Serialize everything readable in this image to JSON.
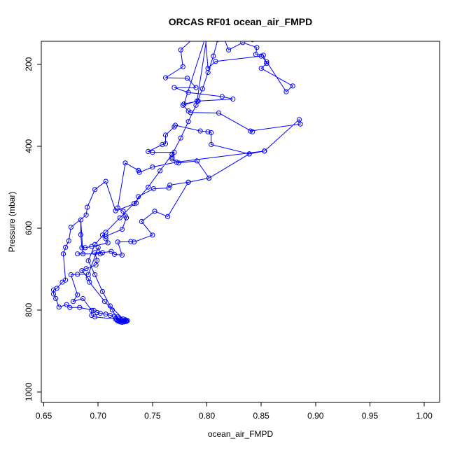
{
  "title": "ORCAS RF01 ocean_air_FMPD",
  "chart_data": {
    "type": "line",
    "title": "ORCAS RF01 ocean_air_FMPD",
    "xlabel": "ocean_air_FMPD",
    "ylabel": "Pressure (mbar)",
    "grid": false,
    "legend": "none",
    "marker": "open-circle",
    "line_style": "solid",
    "series_color": "#0000FF",
    "axis_color": "#000000",
    "background_color": "#FFFFFF",
    "y_axis_reversed": true,
    "x_tick_values": [
      0.65,
      0.7,
      0.75,
      0.8,
      0.85,
      0.9,
      0.95,
      1.0
    ],
    "x_tick_labels": [
      "0.65",
      "0.70",
      "0.75",
      "0.80",
      "0.85",
      "0.90",
      "0.95",
      "1.00"
    ],
    "y_tick_values": [
      200,
      400,
      600,
      800,
      1000
    ],
    "y_tick_labels": [
      "200",
      "400",
      "600",
      "800",
      "1000"
    ],
    "x_range_box": [
      0.6477,
      1.0141
    ],
    "y_range_box": [
      1025,
      144
    ],
    "track": [
      [
        0.844,
        112
      ],
      [
        0.842,
        140
      ],
      [
        0.816,
        138
      ],
      [
        0.82,
        165
      ],
      [
        0.833,
        147
      ],
      [
        0.846,
        159
      ],
      [
        0.845,
        176
      ],
      [
        0.852,
        178
      ],
      [
        0.855,
        198
      ],
      [
        0.85,
        210
      ],
      [
        0.879,
        253
      ],
      [
        0.873,
        267
      ],
      [
        0.855,
        194
      ],
      [
        0.85,
        180
      ],
      [
        0.808,
        193
      ],
      [
        0.801,
        210
      ],
      [
        0.798,
        112
      ],
      [
        0.776,
        165
      ],
      [
        0.778,
        206
      ],
      [
        0.762,
        233
      ],
      [
        0.782,
        234
      ],
      [
        0.79,
        257
      ],
      [
        0.77,
        257
      ],
      [
        0.783,
        269
      ],
      [
        0.814,
        279
      ],
      [
        0.824,
        285
      ],
      [
        0.792,
        290
      ],
      [
        0.779,
        297
      ],
      [
        0.801,
        115
      ],
      [
        0.791,
        290
      ],
      [
        0.778,
        300
      ],
      [
        0.783,
        314
      ],
      [
        0.785,
        318
      ],
      [
        0.811,
        319
      ],
      [
        0.842,
        365
      ],
      [
        0.84,
        363
      ],
      [
        0.886,
        346
      ],
      [
        0.885,
        335
      ],
      [
        0.853,
        412
      ],
      [
        0.839,
        419
      ],
      [
        0.804,
        396
      ],
      [
        0.804,
        367
      ],
      [
        0.801,
        365
      ],
      [
        0.794,
        363
      ],
      [
        0.771,
        349
      ],
      [
        0.77,
        353
      ],
      [
        0.762,
        373
      ],
      [
        0.762,
        394
      ],
      [
        0.759,
        396
      ],
      [
        0.746,
        413
      ],
      [
        0.75,
        415
      ],
      [
        0.77,
        415
      ],
      [
        0.768,
        427
      ],
      [
        0.768,
        431
      ],
      [
        0.774,
        441
      ],
      [
        0.791,
        436
      ],
      [
        0.802,
        478
      ],
      [
        0.783,
        488
      ],
      [
        0.766,
        495
      ],
      [
        0.765,
        502
      ],
      [
        0.751,
        504
      ],
      [
        0.737,
        523
      ],
      [
        0.735,
        539
      ],
      [
        0.716,
        558
      ],
      [
        0.707,
        486
      ],
      [
        0.697,
        506
      ],
      [
        0.69,
        549
      ],
      [
        0.689,
        568
      ],
      [
        0.675,
        598
      ],
      [
        0.673,
        631
      ],
      [
        0.67,
        647
      ],
      [
        0.668,
        663
      ],
      [
        0.67,
        727
      ],
      [
        0.667,
        732
      ],
      [
        0.662,
        747
      ],
      [
        0.659,
        751
      ],
      [
        0.659,
        761
      ],
      [
        0.661,
        772
      ],
      [
        0.664,
        793
      ],
      [
        0.671,
        787
      ],
      [
        0.674,
        794
      ],
      [
        0.683,
        794
      ],
      [
        0.696,
        801
      ],
      [
        0.699,
        806
      ],
      [
        0.702,
        808
      ],
      [
        0.707,
        810
      ],
      [
        0.711,
        813
      ],
      [
        0.715,
        815
      ],
      [
        0.718,
        817
      ],
      [
        0.719,
        821
      ],
      [
        0.721,
        823
      ],
      [
        0.723,
        822
      ],
      [
        0.725,
        824
      ],
      [
        0.727,
        826
      ],
      [
        0.726,
        828
      ],
      [
        0.724,
        829
      ],
      [
        0.722,
        830
      ],
      [
        0.72,
        829
      ],
      [
        0.718,
        827
      ],
      [
        0.717,
        824
      ],
      [
        0.719,
        826
      ],
      [
        0.722,
        825
      ],
      [
        0.724,
        827
      ],
      [
        0.726,
        826
      ],
      [
        0.723,
        828
      ],
      [
        0.72,
        826
      ],
      [
        0.718,
        825
      ],
      [
        0.713,
        800
      ],
      [
        0.706,
        779
      ],
      [
        0.692,
        732
      ],
      [
        0.691,
        723
      ],
      [
        0.685,
        704
      ],
      [
        0.689,
        699
      ],
      [
        0.698,
        690
      ],
      [
        0.699,
        679
      ],
      [
        0.697,
        660
      ],
      [
        0.704,
        660
      ],
      [
        0.712,
        657
      ],
      [
        0.715,
        664
      ],
      [
        0.722,
        666
      ],
      [
        0.718,
        634
      ],
      [
        0.73,
        633
      ],
      [
        0.733,
        634
      ],
      [
        0.75,
        617
      ],
      [
        0.74,
        584
      ],
      [
        0.752,
        559
      ],
      [
        0.764,
        572
      ],
      [
        0.783,
        488
      ],
      [
        0.802,
        478
      ],
      [
        0.839,
        419
      ],
      [
        0.853,
        412
      ],
      [
        0.772,
        439
      ],
      [
        0.75,
        451
      ],
      [
        0.738,
        464
      ],
      [
        0.737,
        459
      ],
      [
        0.725,
        441
      ],
      [
        0.718,
        551
      ],
      [
        0.723,
        559
      ],
      [
        0.725,
        570
      ],
      [
        0.726,
        575
      ],
      [
        0.722,
        603
      ],
      [
        0.707,
        620
      ],
      [
        0.704,
        617
      ],
      [
        0.707,
        626
      ],
      [
        0.709,
        636
      ],
      [
        0.694,
        645
      ],
      [
        0.688,
        648
      ],
      [
        0.685,
        648
      ],
      [
        0.684,
        616
      ],
      [
        0.684,
        580
      ],
      [
        0.686,
        663
      ],
      [
        0.681,
        663
      ],
      [
        0.702,
        663
      ],
      [
        0.7,
        648
      ],
      [
        0.691,
        713
      ],
      [
        0.681,
        713
      ],
      [
        0.675,
        714
      ],
      [
        0.681,
        763
      ],
      [
        0.677,
        779
      ],
      [
        0.686,
        772
      ],
      [
        0.694,
        801
      ],
      [
        0.694,
        813
      ],
      [
        0.697,
        817
      ],
      [
        0.716,
        822
      ],
      [
        0.721,
        828
      ],
      [
        0.725,
        827
      ],
      [
        0.711,
        790
      ],
      [
        0.704,
        755
      ],
      [
        0.697,
        714
      ],
      [
        0.691,
        680
      ],
      [
        0.697,
        640
      ],
      [
        0.707,
        610
      ],
      [
        0.72,
        575
      ],
      [
        0.733,
        540
      ],
      [
        0.746,
        500
      ],
      [
        0.757,
        460
      ],
      [
        0.768,
        420
      ],
      [
        0.776,
        380
      ],
      [
        0.783,
        340
      ],
      [
        0.79,
        300
      ],
      [
        0.796,
        260
      ],
      [
        0.801,
        220
      ],
      [
        0.806,
        180
      ],
      [
        0.81,
        140
      ],
      [
        0.813,
        110
      ]
    ]
  }
}
